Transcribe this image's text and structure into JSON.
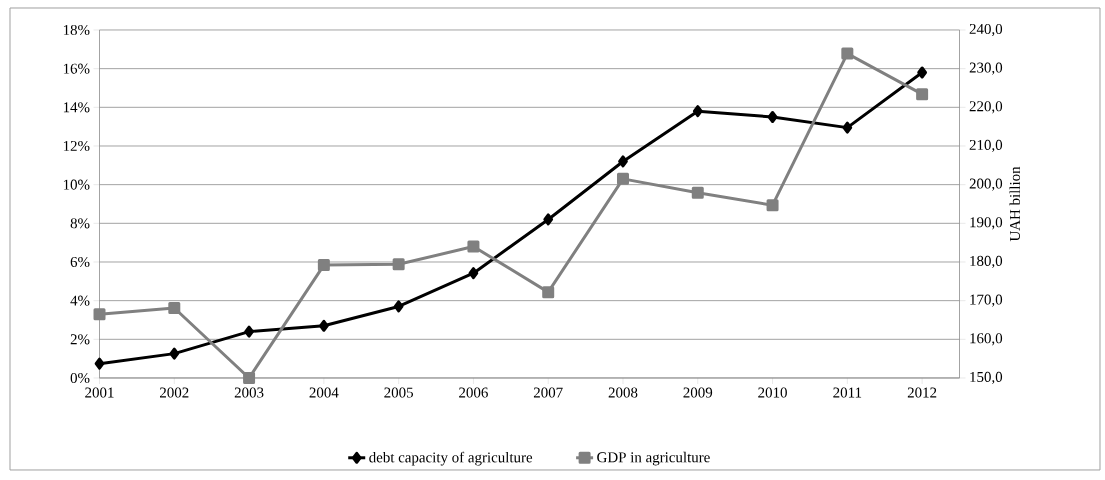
{
  "chart_data": {
    "type": "line",
    "categories": [
      "2001",
      "2002",
      "2003",
      "2004",
      "2005",
      "2006",
      "2007",
      "2008",
      "2009",
      "2010",
      "2011",
      "2012"
    ],
    "y2label": "UAH billion",
    "series": [
      {
        "name": "debt capacity of agriculture",
        "color": "#000000",
        "marker": "diamond",
        "values": [
          0.74,
          1.26,
          2.4,
          2.7,
          3.7,
          5.42,
          8.2,
          11.2,
          13.8,
          13.5,
          12.95,
          15.8
        ]
      },
      {
        "name": "GDP in agriculture",
        "color": "#808080",
        "marker": "square",
        "axis": "y2",
        "values": [
          166.5,
          168.1,
          150.0,
          179.2,
          179.4,
          184.0,
          172.2,
          201.5,
          197.9,
          194.7,
          233.9,
          223.4
        ]
      }
    ],
    "ylim": [
      0,
      18
    ],
    "yticks": [
      {
        "value": 0,
        "label": "0%"
      },
      {
        "value": 2,
        "label": "2%"
      },
      {
        "value": 4,
        "label": "4%"
      },
      {
        "value": 6,
        "label": "6%"
      },
      {
        "value": 8,
        "label": "8%"
      },
      {
        "value": 10,
        "label": "10%"
      },
      {
        "value": 12,
        "label": "12%"
      },
      {
        "value": 14,
        "label": "14%"
      },
      {
        "value": 16,
        "label": "16%"
      },
      {
        "value": 18,
        "label": "18%"
      }
    ],
    "y2lim": [
      150,
      240
    ],
    "y2ticks": [
      {
        "value": 150,
        "label": "150,0"
      },
      {
        "value": 160,
        "label": "160,0"
      },
      {
        "value": 170,
        "label": "170,0"
      },
      {
        "value": 180,
        "label": "180,0"
      },
      {
        "value": 190,
        "label": "190,0"
      },
      {
        "value": 200,
        "label": "200,0"
      },
      {
        "value": 210,
        "label": "210,0"
      },
      {
        "value": 220,
        "label": "220,0"
      },
      {
        "value": 230,
        "label": "230,0"
      },
      {
        "value": 240,
        "label": "240,0"
      }
    ],
    "grid": "y",
    "legend": "bottom"
  }
}
